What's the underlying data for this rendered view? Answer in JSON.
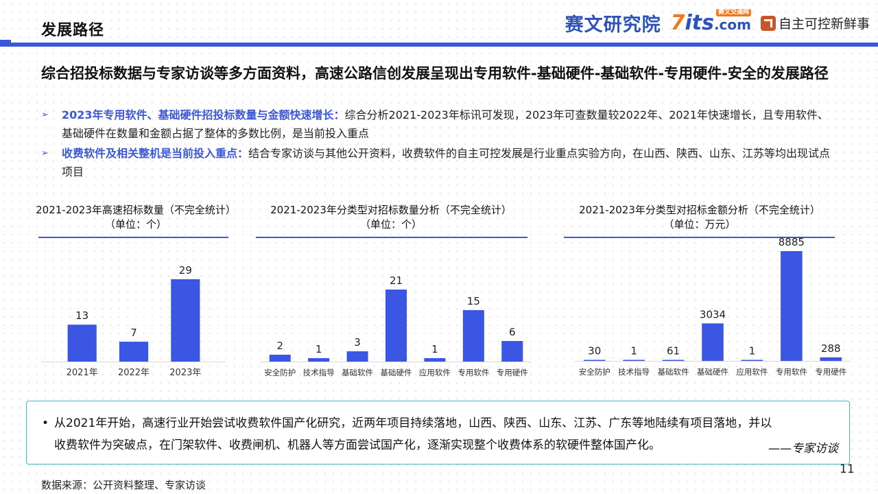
{
  "header": {
    "title": "发展路径",
    "brand_name": "赛文研究院",
    "brand_site": "7its",
    "brand_site_seven": "7",
    "brand_site_rest": "its",
    "brand_site_tld": ".com",
    "brand_site_tag": "赛文交通网",
    "brand_tagline": "自主可控新鲜事"
  },
  "headline": "综合招投标数据与专家访谈等多方面资料，高速公路信创发展呈现出专用软件-基础硬件-基础软件-专用硬件-安全的发展路径",
  "bullets": [
    {
      "strong": "2023年专用软件、基础硬件招投标数量与金额快速增长：",
      "text": "综合分析2021-2023年标讯可发现，2023年可查数量较2022年、2021年快速增长，且专用软件、基础硬件在数量和金额占据了整体的多数比例，是当前投入重点"
    },
    {
      "strong": "收费软件及相关整机是当前投入重点：",
      "text": "结合专家访谈与其他公开资料，收费软件的自主可控发展是行业重点实验方向，在山西、陕西、山东、江苏等均出现试点项目"
    }
  ],
  "chart_data": [
    {
      "type": "bar",
      "title": "2021-2023年高速招标数量（不完全统计）",
      "subtitle": "（单位：个）",
      "categories": [
        "2021年",
        "2022年",
        "2023年"
      ],
      "values": [
        13,
        7,
        29
      ],
      "ylim": [
        0,
        29
      ],
      "color": "#3b56e3",
      "grid": false,
      "legend": "none"
    },
    {
      "type": "bar",
      "title": "2021-2023年分类型对招标数量分析（不完全统计）",
      "subtitle": "（单位：个）",
      "categories": [
        "安全防护",
        "技术指导",
        "基础软件",
        "基础硬件",
        "应用软件",
        "专用软件",
        "专用硬件"
      ],
      "values": [
        2,
        1,
        3,
        21,
        1,
        15,
        6
      ],
      "ylim": [
        0,
        21
      ],
      "color": "#3b56e3",
      "grid": false,
      "legend": "none"
    },
    {
      "type": "bar",
      "title": "2021-2023年分类型对招标金额分析（不完全统计）",
      "subtitle": "（单位：万元）",
      "categories": [
        "安全防护",
        "技术指导",
        "基础软件",
        "基础硬件",
        "应用软件",
        "专用软件",
        "专用硬件"
      ],
      "values": [
        30,
        1,
        61,
        3034,
        1,
        8885,
        288
      ],
      "ylim": [
        0,
        8885
      ],
      "color": "#3b56e3",
      "grid": false,
      "legend": "none"
    }
  ],
  "quote": {
    "bullet": "•",
    "line1": "从2021年开始，高速行业开始尝试收费软件国产化研究，近两年项目持续落地，山西、陕西、山东、江苏、广东等地陆续有项目落地，并以",
    "line2": "收费软件为突破点，在门架软件、收费闸机、机器人等方面尝试国产化，逐渐实现整个收费体系的软硬件整体国产化。",
    "source": "——专家访谈"
  },
  "page_number": "11",
  "footer_source": "数据来源：公开资料整理、专家访谈",
  "icons": {
    "bullet_arrow": "➢",
    "brand_logo": "logo-icon"
  }
}
